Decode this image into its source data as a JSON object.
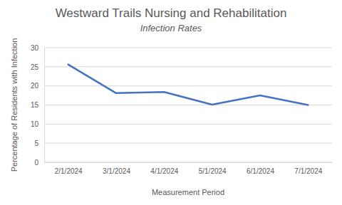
{
  "chart_data": {
    "type": "line",
    "title": "Westward Trails Nursing and Rehabilitation",
    "subtitle": "Infection Rates",
    "x_label": "Measurement Period",
    "y_label": "Percentage of Residents with Infection",
    "categories": [
      "2/1/2024",
      "3/1/2024",
      "4/1/2024",
      "5/1/2024",
      "6/1/2024",
      "7/1/2024"
    ],
    "values": [
      25.6,
      18.1,
      18.4,
      15.1,
      17.5,
      15.0
    ],
    "color": "#4472c4",
    "ylim": [
      0,
      30
    ],
    "yticks": [
      0,
      5,
      10,
      15,
      20,
      25,
      30
    ],
    "grid": true
  }
}
